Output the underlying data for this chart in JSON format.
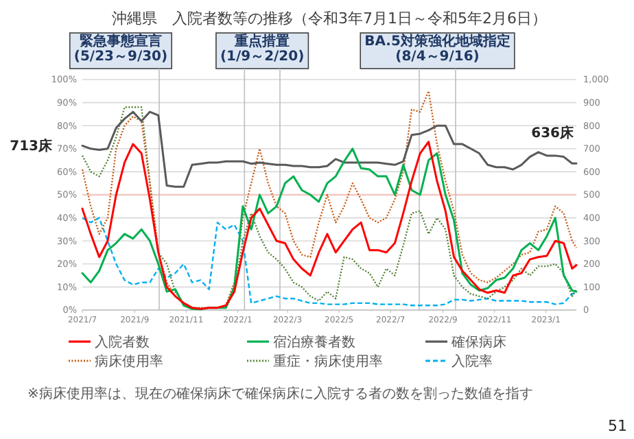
{
  "chart_data": {
    "type": "line",
    "title": "沖縄県　入院者数等の推移（令和3年7月1日～令和5年2月6日）",
    "x": [
      "2021-07-01",
      "2021-07-11",
      "2021-07-21",
      "2021-07-31",
      "2021-08-10",
      "2021-08-20",
      "2021-08-30",
      "2021-09-09",
      "2021-09-19",
      "2021-09-29",
      "2021-10-09",
      "2021-10-19",
      "2021-10-29",
      "2021-11-08",
      "2021-11-18",
      "2021-11-28",
      "2021-12-08",
      "2021-12-18",
      "2021-12-28",
      "2022-01-07",
      "2022-01-17",
      "2022-01-27",
      "2022-02-06",
      "2022-02-16",
      "2022-02-26",
      "2022-03-08",
      "2022-03-18",
      "2022-03-28",
      "2022-04-07",
      "2022-04-17",
      "2022-04-27",
      "2022-05-07",
      "2022-05-17",
      "2022-05-27",
      "2022-06-06",
      "2022-06-16",
      "2022-06-26",
      "2022-07-06",
      "2022-07-16",
      "2022-07-26",
      "2022-08-05",
      "2022-08-15",
      "2022-08-25",
      "2022-09-04",
      "2022-09-14",
      "2022-09-24",
      "2022-10-04",
      "2022-10-14",
      "2022-10-24",
      "2022-11-03",
      "2022-11-13",
      "2022-11-23",
      "2022-12-03",
      "2022-12-13",
      "2022-12-23",
      "2023-01-02",
      "2023-01-12",
      "2023-01-22",
      "2023-02-01",
      "2023-02-06"
    ],
    "series": [
      {
        "name": "入院者数",
        "color": "#ff0000",
        "line_style": "solid",
        "axis": "y2",
        "values": [
          440,
          330,
          230,
          300,
          500,
          640,
          720,
          680,
          480,
          250,
          100,
          60,
          30,
          10,
          5,
          10,
          10,
          20,
          80,
          250,
          400,
          440,
          370,
          300,
          290,
          220,
          180,
          150,
          250,
          330,
          250,
          300,
          350,
          380,
          260,
          260,
          250,
          290,
          420,
          560,
          680,
          730,
          560,
          430,
          230,
          170,
          130,
          90,
          75,
          85,
          75,
          150,
          160,
          220,
          230,
          235,
          300,
          290,
          180,
          195
        ]
      },
      {
        "name": "宿泊療養者数",
        "color": "#00b050",
        "line_style": "solid",
        "axis": "y2",
        "values": [
          160,
          120,
          170,
          260,
          290,
          330,
          310,
          350,
          300,
          200,
          80,
          90,
          20,
          5,
          3,
          10,
          10,
          10,
          100,
          450,
          350,
          500,
          420,
          450,
          550,
          580,
          520,
          500,
          470,
          550,
          580,
          645,
          700,
          615,
          610,
          580,
          580,
          500,
          630,
          520,
          500,
          650,
          680,
          500,
          390,
          160,
          110,
          85,
          95,
          130,
          140,
          180,
          260,
          290,
          260,
          320,
          400,
          150,
          85,
          80
        ]
      },
      {
        "name": "確保病床",
        "color": "#595959",
        "line_style": "solid",
        "axis": "y2",
        "values": [
          713,
          700,
          695,
          700,
          790,
          830,
          860,
          820,
          860,
          845,
          540,
          535,
          535,
          630,
          635,
          640,
          640,
          645,
          645,
          645,
          635,
          640,
          635,
          630,
          630,
          625,
          625,
          620,
          620,
          625,
          655,
          640,
          640,
          640,
          640,
          640,
          635,
          630,
          645,
          760,
          765,
          780,
          800,
          800,
          720,
          720,
          700,
          680,
          630,
          620,
          620,
          610,
          630,
          665,
          685,
          670,
          670,
          665,
          636,
          636
        ]
      },
      {
        "name": "病床使用率",
        "color": "#c55a11",
        "line_style": "dotted",
        "values": [
          61,
          45,
          33,
          40,
          70,
          80,
          84,
          82,
          55,
          25,
          12,
          6,
          3,
          1,
          0.5,
          1,
          1,
          2,
          12,
          40,
          55,
          70,
          55,
          45,
          42,
          30,
          24,
          23,
          38,
          50,
          38,
          45,
          55,
          48,
          40,
          38,
          40,
          48,
          60,
          87,
          86,
          95,
          72,
          56,
          43,
          24,
          16,
          13,
          12,
          14,
          17,
          20,
          24,
          25,
          34,
          35,
          45,
          42,
          30,
          27
        ]
      },
      {
        "name": "重症・病床使用率",
        "color": "#548235",
        "line_style": "dotted",
        "values": [
          67,
          60,
          58,
          65,
          75,
          88,
          88,
          88,
          55,
          25,
          20,
          8,
          3,
          1,
          1,
          1,
          1,
          1,
          8,
          30,
          42,
          32,
          25,
          22,
          18,
          12,
          10,
          6,
          4,
          8,
          5,
          23,
          22,
          18,
          16,
          10,
          18,
          15,
          28,
          42,
          43,
          33,
          40,
          35,
          15,
          10,
          7,
          6,
          5,
          8,
          10,
          13,
          18,
          15,
          19,
          19,
          20,
          16,
          6,
          9
        ]
      },
      {
        "name": "入院率",
        "color": "#00b0f0",
        "line_style": "dashed",
        "values": [
          40,
          38,
          40,
          30,
          20,
          13,
          11,
          12,
          12,
          18,
          14,
          16,
          20,
          12,
          13,
          9,
          38,
          35,
          37,
          30,
          3,
          4,
          5,
          6,
          5,
          5,
          4,
          3,
          3,
          2.5,
          2.5,
          2.5,
          3,
          3,
          3,
          2.5,
          2.5,
          2.5,
          2.5,
          2,
          2,
          2,
          2,
          2.5,
          4.5,
          4.5,
          4,
          4.5,
          5,
          4,
          4,
          4,
          4,
          3.5,
          3.5,
          3.5,
          2.5,
          3,
          7,
          7.5
        ]
      }
    ],
    "xlim": [
      "2021-07-01",
      "2023-02-06"
    ],
    "xticks": [
      {
        "value": "2021-07-01",
        "label": "2021/7"
      },
      {
        "value": "2021-09-01",
        "label": "2021/9"
      },
      {
        "value": "2021-11-01",
        "label": "2021/11"
      },
      {
        "value": "2022-01-01",
        "label": "2022/1"
      },
      {
        "value": "2022-03-01",
        "label": "2022/3"
      },
      {
        "value": "2022-05-01",
        "label": "2022/5"
      },
      {
        "value": "2022-07-01",
        "label": "2022/7"
      },
      {
        "value": "2022-09-01",
        "label": "2022/9"
      },
      {
        "value": "2022-11-01",
        "label": "2022/11"
      },
      {
        "value": "2023-01-01",
        "label": "2023/1"
      }
    ],
    "ylim": [
      0,
      100
    ],
    "yticks": [
      {
        "value": 0,
        "label": "0%"
      },
      {
        "value": 10,
        "label": "10%"
      },
      {
        "value": 20,
        "label": "20%"
      },
      {
        "value": 30,
        "label": "30%"
      },
      {
        "value": 40,
        "label": "40%"
      },
      {
        "value": 50,
        "label": "50%"
      },
      {
        "value": 60,
        "label": "60%"
      },
      {
        "value": 70,
        "label": "70%"
      },
      {
        "value": 80,
        "label": "80%"
      },
      {
        "value": 90,
        "label": "90%"
      },
      {
        "value": 100,
        "label": "100%"
      }
    ],
    "y2lim": [
      0,
      1000
    ],
    "y2ticks": [
      0,
      100,
      200,
      300,
      400,
      500,
      600,
      700,
      800,
      900,
      {
        "value": 1000,
        "label": "1,000"
      }
    ],
    "grid": "y",
    "legend": "bottom",
    "ref_lines": [
      {
        "axis": "y",
        "value": 50,
        "color": "#f4c7c3"
      },
      {
        "axis": "x",
        "value": "2021-09-30",
        "label": "緊急事態宣言\n(5/23～9/30)"
      },
      {
        "axis": "x",
        "value": "2022-01-09",
        "label": "重点措置\n(1/9～2/20)"
      },
      {
        "axis": "x",
        "value": "2022-02-20"
      },
      {
        "axis": "x",
        "value": "2022-08-04",
        "label": "BA.5対策強化地域指定\n(8/4～9/16)"
      },
      {
        "axis": "x",
        "value": "2022-09-16"
      }
    ],
    "annotations": [
      "713床",
      "636床",
      "※病床使用率は、現在の確保病床で確保病床に入院する者の数を割った数値を指す",
      "51"
    ]
  }
}
